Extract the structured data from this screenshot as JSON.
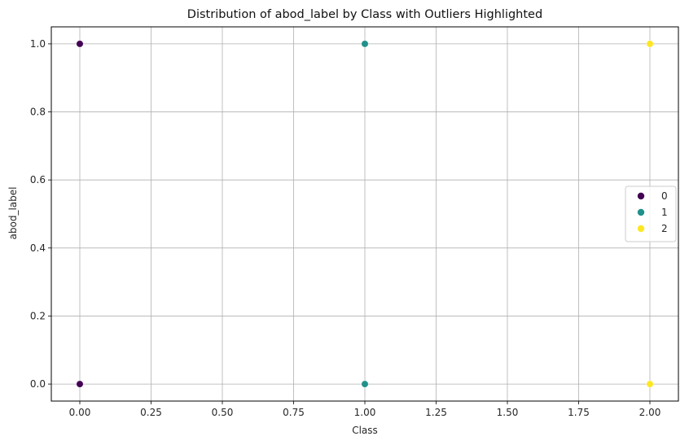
{
  "chart_data": {
    "type": "scatter",
    "title": "Distribution of abod_label by Class with Outliers Highlighted",
    "xlabel": "Class",
    "ylabel": "abod_label",
    "xlim": [
      -0.1,
      2.1
    ],
    "ylim": [
      -0.05,
      1.05
    ],
    "xticks": [
      "0.00",
      "0.25",
      "0.50",
      "0.75",
      "1.00",
      "1.25",
      "1.50",
      "1.75",
      "2.00"
    ],
    "xtick_values": [
      0,
      0.25,
      0.5,
      0.75,
      1.0,
      1.25,
      1.5,
      1.75,
      2.0
    ],
    "yticks": [
      "0.0",
      "0.2",
      "0.4",
      "0.6",
      "0.8",
      "1.0"
    ],
    "ytick_values": [
      0,
      0.2,
      0.4,
      0.6,
      0.8,
      1.0
    ],
    "grid": true,
    "legend": {
      "placement": "right",
      "title": ""
    },
    "series": [
      {
        "name": "0",
        "color": "#440154",
        "x": [
          0,
          0
        ],
        "y": [
          1,
          0
        ]
      },
      {
        "name": "1",
        "color": "#21918c",
        "x": [
          1,
          1
        ],
        "y": [
          1,
          0
        ]
      },
      {
        "name": "2",
        "color": "#fde725",
        "x": [
          2,
          2
        ],
        "y": [
          1,
          0
        ]
      }
    ]
  }
}
